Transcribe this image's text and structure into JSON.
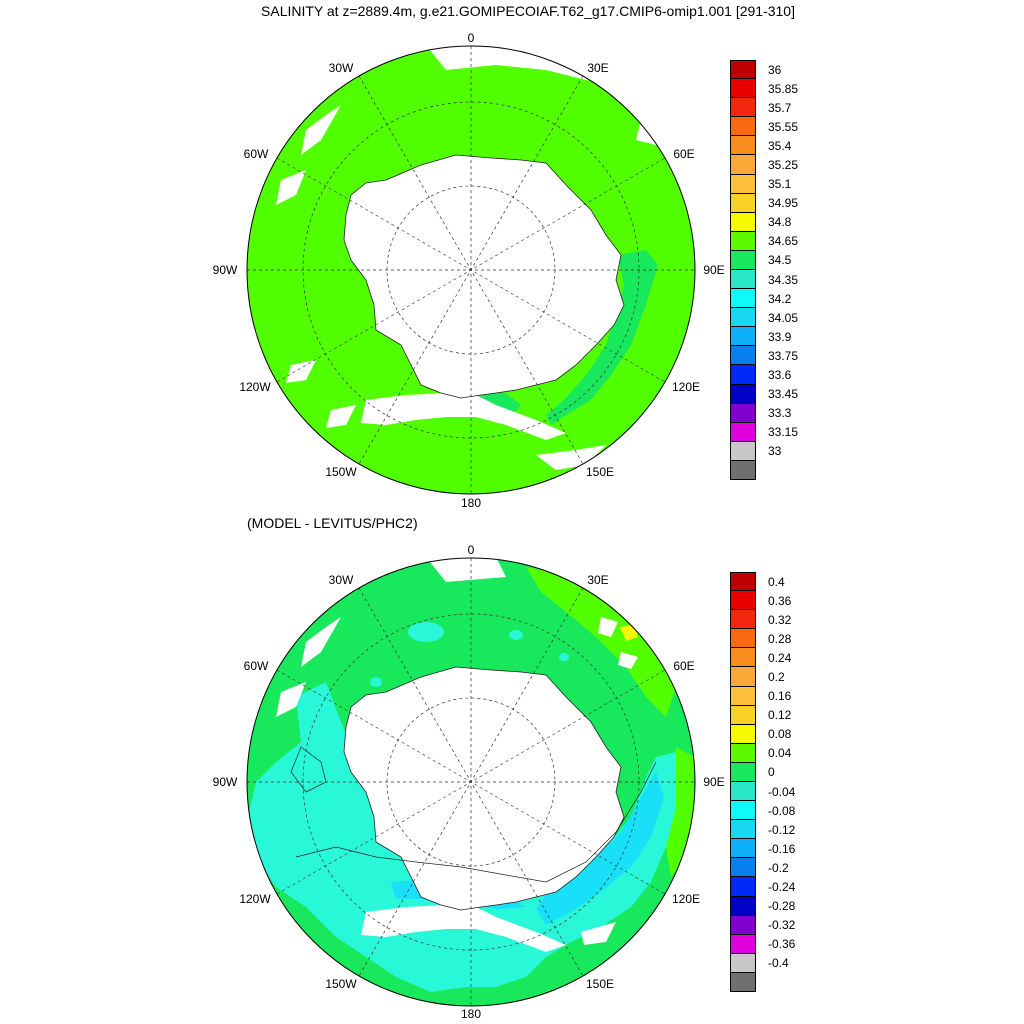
{
  "titles": {
    "top": "SALINITY at z=2889.4m, g.e21.GOMIPECOIAF.T62_g17.CMIP6-omip1.001 [291-310]",
    "bottom": "(MODEL - LEVITUS/PHC2)"
  },
  "map_labels": {
    "n0": "0",
    "n30e": "30E",
    "n60e": "60E",
    "n90e": "90E",
    "n120e": "120E",
    "n150e": "150E",
    "n180": "180",
    "n150w": "150W",
    "n120w": "120W",
    "n90w": "90W",
    "n60w": "60W",
    "n30w": "30W"
  },
  "colorbar_top": {
    "labels": [
      "36",
      "35.85",
      "35.7",
      "35.55",
      "35.4",
      "35.25",
      "35.1",
      "34.95",
      "34.8",
      "34.65",
      "34.5",
      "34.35",
      "34.2",
      "34.05",
      "33.9",
      "33.75",
      "33.6",
      "33.45",
      "33.3",
      "33.15",
      "33"
    ],
    "colors": [
      "#c00000",
      "#e60000",
      "#f52510",
      "#f86a10",
      "#f88c1c",
      "#faa838",
      "#fcc03a",
      "#f8d028",
      "#f8f800",
      "#5cf800",
      "#18e85c",
      "#28e8c8",
      "#10f8f8",
      "#18d8f0",
      "#10b0f8",
      "#0880f0",
      "#0028f8",
      "#0000c8",
      "#8000d0",
      "#e000e0",
      "#c8c8c8",
      "#707070"
    ]
  },
  "colorbar_bottom": {
    "labels": [
      "0.4",
      "0.36",
      "0.32",
      "0.28",
      "0.24",
      "0.2",
      "0.16",
      "0.12",
      "0.08",
      "0.04",
      "0",
      "-0.04",
      "-0.08",
      "-0.12",
      "-0.16",
      "-0.2",
      "-0.24",
      "-0.28",
      "-0.32",
      "-0.36",
      "-0.4"
    ],
    "colors": [
      "#c00000",
      "#e60000",
      "#f52510",
      "#f86a10",
      "#f88c1c",
      "#faa838",
      "#fcc03a",
      "#f8d028",
      "#f8f800",
      "#5cf800",
      "#18e85c",
      "#28e8c8",
      "#10f8f8",
      "#18d8f0",
      "#10b0f8",
      "#0880f0",
      "#0028f8",
      "#0000c8",
      "#8000d0",
      "#e000e0",
      "#c8c8c8",
      "#707070"
    ]
  },
  "field_colors": {
    "ocean_top": "#52ff00",
    "band_top": "#18e85c",
    "land": "#ffffff",
    "green_bottom": "#18e85c",
    "lime_bottom": "#52ff00",
    "cyan_bottom": "#28f8d8",
    "lightblue_bottom": "#18e0f8",
    "yellow_bottom": "#f8f800"
  }
}
